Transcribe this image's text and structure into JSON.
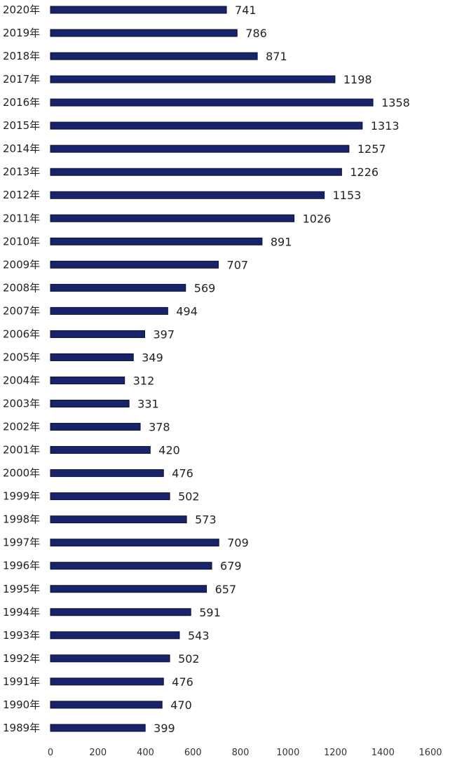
{
  "chart_data": {
    "type": "bar",
    "orientation": "horizontal",
    "title": "",
    "xlabel": "",
    "ylabel": "",
    "categories": [
      "2020年",
      "2019年",
      "2018年",
      "2017年",
      "2016年",
      "2015年",
      "2014年",
      "2013年",
      "2012年",
      "2011年",
      "2010年",
      "2009年",
      "2008年",
      "2007年",
      "2006年",
      "2005年",
      "2004年",
      "2003年",
      "2002年",
      "2001年",
      "2000年",
      "1999年",
      "1998年",
      "1997年",
      "1996年",
      "1995年",
      "1994年",
      "1993年",
      "1992年",
      "1991年",
      "1990年",
      "1989年"
    ],
    "values": [
      741,
      786,
      871,
      1198,
      1358,
      1313,
      1257,
      1226,
      1153,
      1026,
      891,
      707,
      569,
      494,
      397,
      349,
      312,
      331,
      378,
      420,
      476,
      502,
      573,
      709,
      679,
      657,
      591,
      543,
      502,
      476,
      470,
      399
    ],
    "xlim": [
      0,
      1600
    ],
    "xticks": [
      0,
      200,
      400,
      600,
      800,
      1000,
      1200,
      1400,
      1600
    ],
    "grid": false,
    "data_labels": true,
    "bar_color": "#17246b",
    "bar_edge_color": "#0b0f2e"
  }
}
